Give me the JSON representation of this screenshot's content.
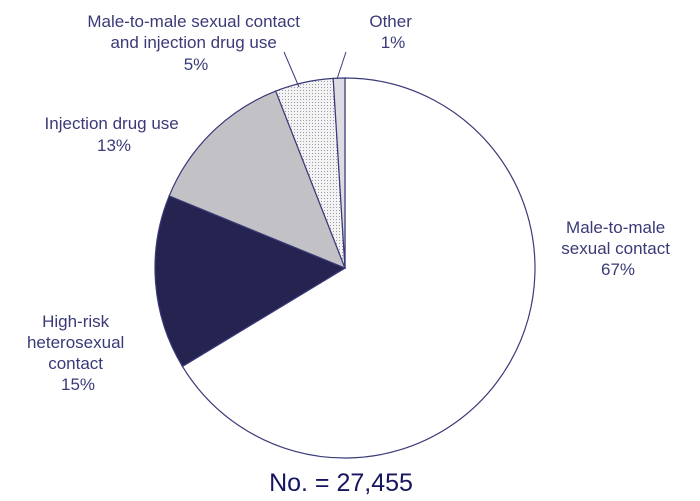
{
  "chart_data": {
    "type": "pie",
    "slices": [
      {
        "label": [
          "Male-to-male",
          "sexual contact"
        ],
        "percent_label": "67%",
        "value": 67,
        "color": "#ffffff",
        "pattern": "none"
      },
      {
        "label": [
          "High-risk",
          "heterosexual",
          "contact"
        ],
        "percent_label": "15%",
        "value": 15,
        "color": "#25234f",
        "pattern": "none"
      },
      {
        "label": [
          "Injection drug use"
        ],
        "percent_label": "13%",
        "value": 13,
        "color": "#c2c2c6",
        "pattern": "none"
      },
      {
        "label": [
          "Male-to-male sexual contact",
          "and injection drug use"
        ],
        "percent_label": "5%",
        "value": 5,
        "color": "#eeeeee",
        "pattern": "dots"
      },
      {
        "label": [
          "Other"
        ],
        "percent_label": "1%",
        "value": 1,
        "color": "#dcdce2",
        "pattern": "none"
      }
    ],
    "start_angle_deg": 0,
    "direction": "clockwise",
    "total_label": "No. = 27,455",
    "outline_color": "#3a3a78",
    "text_color": "#3a3a78"
  }
}
